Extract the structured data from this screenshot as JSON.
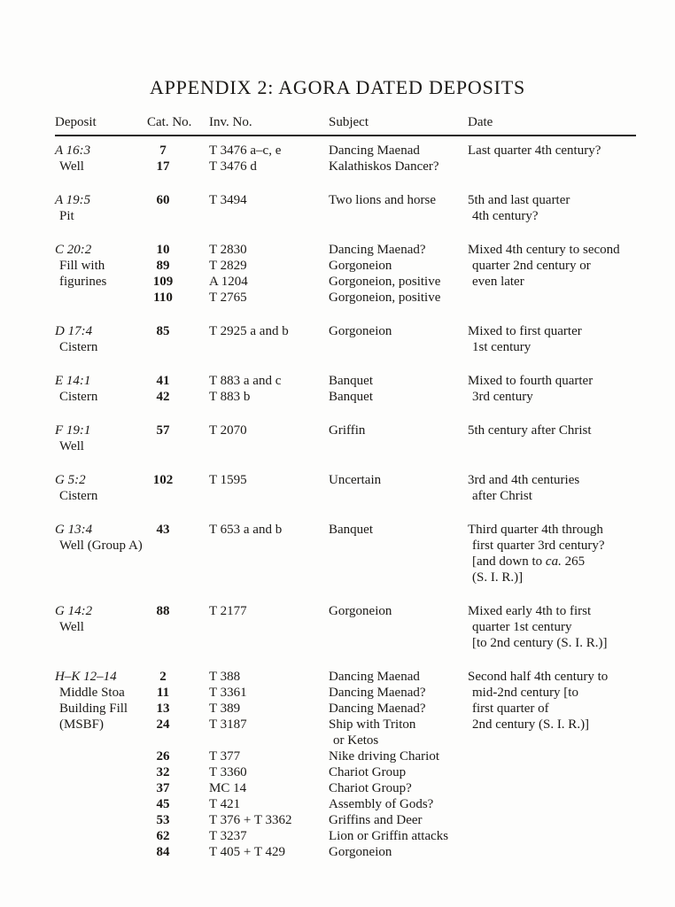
{
  "page": {
    "title": "APPENDIX 2: AGORA DATED DEPOSITS"
  },
  "table": {
    "columns": [
      "Deposit",
      "Cat. No.",
      "Inv. No.",
      "Subject",
      "Date"
    ],
    "groups": [
      {
        "deposit": [
          "A 16:3",
          "Well"
        ],
        "entries": [
          {
            "cat": "7",
            "inv": "T 3476 a–c, e",
            "subject": [
              "Dancing Maenad"
            ]
          },
          {
            "cat": "17",
            "inv": "T 3476 d",
            "subject": [
              "Kalathiskos Dancer?"
            ]
          }
        ],
        "date": [
          "Last quarter 4th century?"
        ]
      },
      {
        "deposit": [
          "A 19:5",
          "Pit"
        ],
        "entries": [
          {
            "cat": "60",
            "inv": "T 3494",
            "subject": [
              "Two lions and horse"
            ]
          }
        ],
        "date": [
          "5th and last quarter",
          "4th century?"
        ]
      },
      {
        "deposit": [
          "C 20:2",
          "Fill with",
          "figurines"
        ],
        "entries": [
          {
            "cat": "10",
            "inv": "T 2830",
            "subject": [
              "Dancing Maenad?"
            ]
          },
          {
            "cat": "89",
            "inv": "T 2829",
            "subject": [
              "Gorgoneion"
            ]
          },
          {
            "cat": "109",
            "inv": "A 1204",
            "subject": [
              "Gorgoneion, positive"
            ]
          },
          {
            "cat": "110",
            "inv": "T 2765",
            "subject": [
              "Gorgoneion, positive"
            ]
          }
        ],
        "date": [
          "Mixed 4th century to second",
          "quarter 2nd century or",
          "even later"
        ]
      },
      {
        "deposit": [
          "D 17:4",
          "Cistern"
        ],
        "entries": [
          {
            "cat": "85",
            "inv": "T 2925 a and b",
            "subject": [
              "Gorgoneion"
            ]
          }
        ],
        "date": [
          "Mixed to first quarter",
          "1st century"
        ]
      },
      {
        "deposit": [
          "E 14:1",
          "Cistern"
        ],
        "entries": [
          {
            "cat": "41",
            "inv": "T 883 a and c",
            "subject": [
              "Banquet"
            ]
          },
          {
            "cat": "42",
            "inv": "T 883 b",
            "subject": [
              "Banquet"
            ]
          }
        ],
        "date": [
          "Mixed to fourth quarter",
          "3rd century"
        ]
      },
      {
        "deposit": [
          "F 19:1",
          "Well"
        ],
        "entries": [
          {
            "cat": "57",
            "inv": "T 2070",
            "subject": [
              "Griffin"
            ]
          }
        ],
        "date": [
          "5th century after Christ"
        ]
      },
      {
        "deposit": [
          "G 5:2",
          "Cistern"
        ],
        "entries": [
          {
            "cat": "102",
            "inv": "T 1595",
            "subject": [
              "Uncertain"
            ]
          }
        ],
        "date": [
          "3rd and 4th centuries",
          "after Christ"
        ]
      },
      {
        "deposit": [
          "G 13:4",
          "Well (Group A)"
        ],
        "entries": [
          {
            "cat": "43",
            "inv": "T 653 a and b",
            "subject": [
              "Banquet"
            ]
          }
        ],
        "date": [
          "Third quarter 4th through",
          "first quarter 3rd century?",
          {
            "seg": [
              {
                "t": "[and down to "
              },
              {
                "t": "ca.",
                "i": true
              },
              {
                "t": " 265"
              }
            ]
          },
          "(S. I. R.)]"
        ]
      },
      {
        "deposit": [
          "G 14:2",
          "Well"
        ],
        "entries": [
          {
            "cat": "88",
            "inv": "T 2177",
            "subject": [
              "Gorgoneion"
            ]
          }
        ],
        "date": [
          "Mixed early 4th to first",
          "quarter 1st century",
          "[to 2nd century (S. I. R.)]"
        ]
      },
      {
        "deposit": [
          "H–K 12–14",
          "Middle Stoa",
          "Building Fill",
          "(MSBF)"
        ],
        "entries": [
          {
            "cat": "2",
            "inv": "T 388",
            "subject": [
              "Dancing Maenad"
            ]
          },
          {
            "cat": "11",
            "inv": "T 3361",
            "subject": [
              "Dancing Maenad?"
            ]
          },
          {
            "cat": "13",
            "inv": "T 389",
            "subject": [
              "Dancing Maenad?"
            ]
          },
          {
            "cat": "24",
            "inv": "T 3187",
            "subject": [
              "Ship with Triton",
              "or Ketos"
            ]
          },
          {
            "cat": "26",
            "inv": "T 377",
            "subject": [
              "Nike driving Chariot"
            ]
          },
          {
            "cat": "32",
            "inv": "T 3360",
            "subject": [
              "Chariot Group"
            ]
          },
          {
            "cat": "37",
            "inv": "MC 14",
            "subject": [
              "Chariot Group?"
            ]
          },
          {
            "cat": "45",
            "inv": "T 421",
            "subject": [
              "Assembly of Gods?"
            ]
          },
          {
            "cat": "53",
            "inv": "T 376 + T 3362",
            "subject": [
              "Griffins and Deer"
            ]
          },
          {
            "cat": "62",
            "inv": "T 3237",
            "subject": [
              "Lion or Griffin attacks"
            ]
          },
          {
            "cat": "84",
            "inv": "T 405 + T 429",
            "subject": [
              "Gorgoneion"
            ]
          }
        ],
        "date": [
          "Second half 4th century to",
          "mid-2nd century [to",
          "first quarter of",
          "2nd century (S. I. R.)]"
        ]
      }
    ]
  }
}
